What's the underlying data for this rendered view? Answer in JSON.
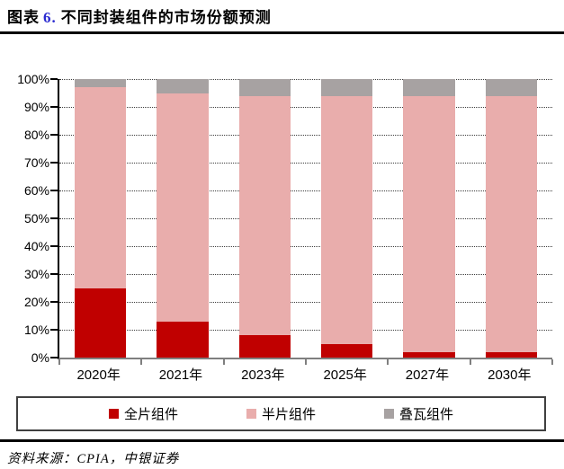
{
  "title": {
    "prefix": "图表",
    "number": "6.",
    "text": "不同封装组件的市场份额预测"
  },
  "source": {
    "text": "资料来源：CPIA，中银证券"
  },
  "colors": {
    "title_number": "#2b2bd0",
    "full_module": "#c00000",
    "half_module": "#e9adac",
    "shingled_module": "#a7a2a2",
    "axis_x": "#7f7f7f",
    "axis_y": "#000000",
    "gridline": "#3c3c3c"
  },
  "chart_data": {
    "type": "bar",
    "stacked": true,
    "title": "不同封装组件的市场份额预测",
    "categories": [
      "2020年",
      "2021年",
      "2023年",
      "2025年",
      "2027年",
      "2030年"
    ],
    "series": [
      {
        "key": "full-module",
        "name": "全片组件",
        "color": "#c00000",
        "values": [
          25,
          13,
          8,
          5,
          2,
          2
        ]
      },
      {
        "key": "half-module",
        "name": "半片组件",
        "color": "#e9adac",
        "values": [
          72,
          82,
          86,
          89,
          92,
          92
        ]
      },
      {
        "key": "shingled-module",
        "name": "叠瓦组件",
        "color": "#a7a2a2",
        "values": [
          3,
          5,
          6,
          6,
          6,
          6
        ]
      }
    ],
    "y_ticks": [
      "0%",
      "10%",
      "20%",
      "30%",
      "40%",
      "50%",
      "60%",
      "70%",
      "80%",
      "90%",
      "100%"
    ],
    "ylim": [
      0,
      100
    ],
    "xlabel": "",
    "ylabel": "",
    "grid": "dotted-horizontal",
    "legend_position": "bottom"
  }
}
